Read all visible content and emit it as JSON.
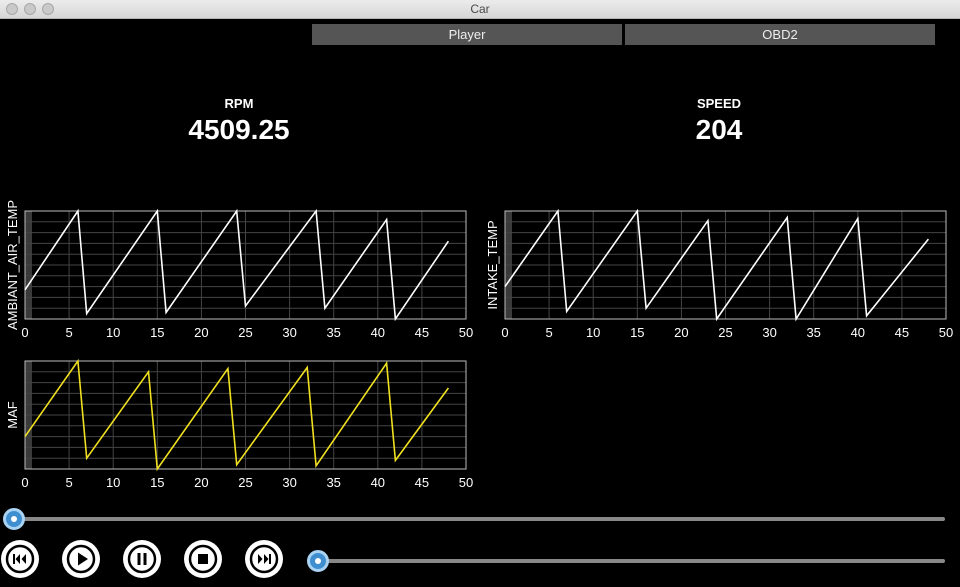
{
  "window": {
    "title": "Car"
  },
  "tabs": [
    {
      "label": "Player"
    },
    {
      "label": "OBD2"
    }
  ],
  "gauges": [
    {
      "label": "RPM",
      "value": "4509.25"
    },
    {
      "label": "SPEED",
      "value": "204"
    }
  ],
  "charts": [
    {
      "ylabel": "AMBIANT_AIR_TEMP",
      "color": "#ffffff"
    },
    {
      "ylabel": "INTAKE_TEMP",
      "color": "#ffffff"
    },
    {
      "ylabel": "MAF",
      "color": "#f0e020"
    }
  ],
  "chart_data": [
    {
      "type": "line",
      "xlabel": "",
      "ylabel": "AMBIANT_AIR_TEMP",
      "xlim": [
        0,
        50
      ],
      "xticks": [
        0,
        5,
        10,
        15,
        20,
        25,
        30,
        35,
        40,
        45,
        50
      ],
      "grid": true,
      "series": [
        {
          "color": "#ffffff",
          "x": [
            0,
            6,
            7,
            15,
            16,
            24,
            25,
            33,
            34,
            41,
            42,
            48
          ],
          "y": [
            0.27,
            1.0,
            0.05,
            1.0,
            0.06,
            1.0,
            0.12,
            1.0,
            0.1,
            0.92,
            0.0,
            0.72
          ]
        }
      ]
    },
    {
      "type": "line",
      "xlabel": "",
      "ylabel": "INTAKE_TEMP",
      "xlim": [
        0,
        50
      ],
      "xticks": [
        0,
        5,
        10,
        15,
        20,
        25,
        30,
        35,
        40,
        45,
        50
      ],
      "grid": true,
      "series": [
        {
          "color": "#ffffff",
          "x": [
            0,
            6,
            7,
            15,
            16,
            23,
            24,
            32,
            33,
            40,
            41,
            48
          ],
          "y": [
            0.3,
            1.0,
            0.07,
            1.0,
            0.1,
            0.91,
            0.0,
            0.94,
            0.0,
            0.93,
            0.03,
            0.74
          ]
        }
      ]
    },
    {
      "type": "line",
      "xlabel": "",
      "ylabel": "MAF",
      "xlim": [
        0,
        50
      ],
      "xticks": [
        0,
        5,
        10,
        15,
        20,
        25,
        30,
        35,
        40,
        45,
        50
      ],
      "grid": true,
      "series": [
        {
          "color": "#f0e020",
          "x": [
            0,
            6,
            7,
            14,
            15,
            23,
            24,
            32,
            33,
            41,
            42,
            48
          ],
          "y": [
            0.3,
            1.0,
            0.1,
            0.9,
            0.0,
            0.93,
            0.04,
            0.94,
            0.03,
            0.98,
            0.08,
            0.75
          ]
        }
      ]
    }
  ],
  "player": {
    "seek_position": 0.0,
    "volume_position": 0.0,
    "controls": [
      {
        "name": "skip-back-icon"
      },
      {
        "name": "play-icon"
      },
      {
        "name": "pause-icon"
      },
      {
        "name": "stop-icon"
      },
      {
        "name": "skip-forward-icon"
      }
    ]
  }
}
